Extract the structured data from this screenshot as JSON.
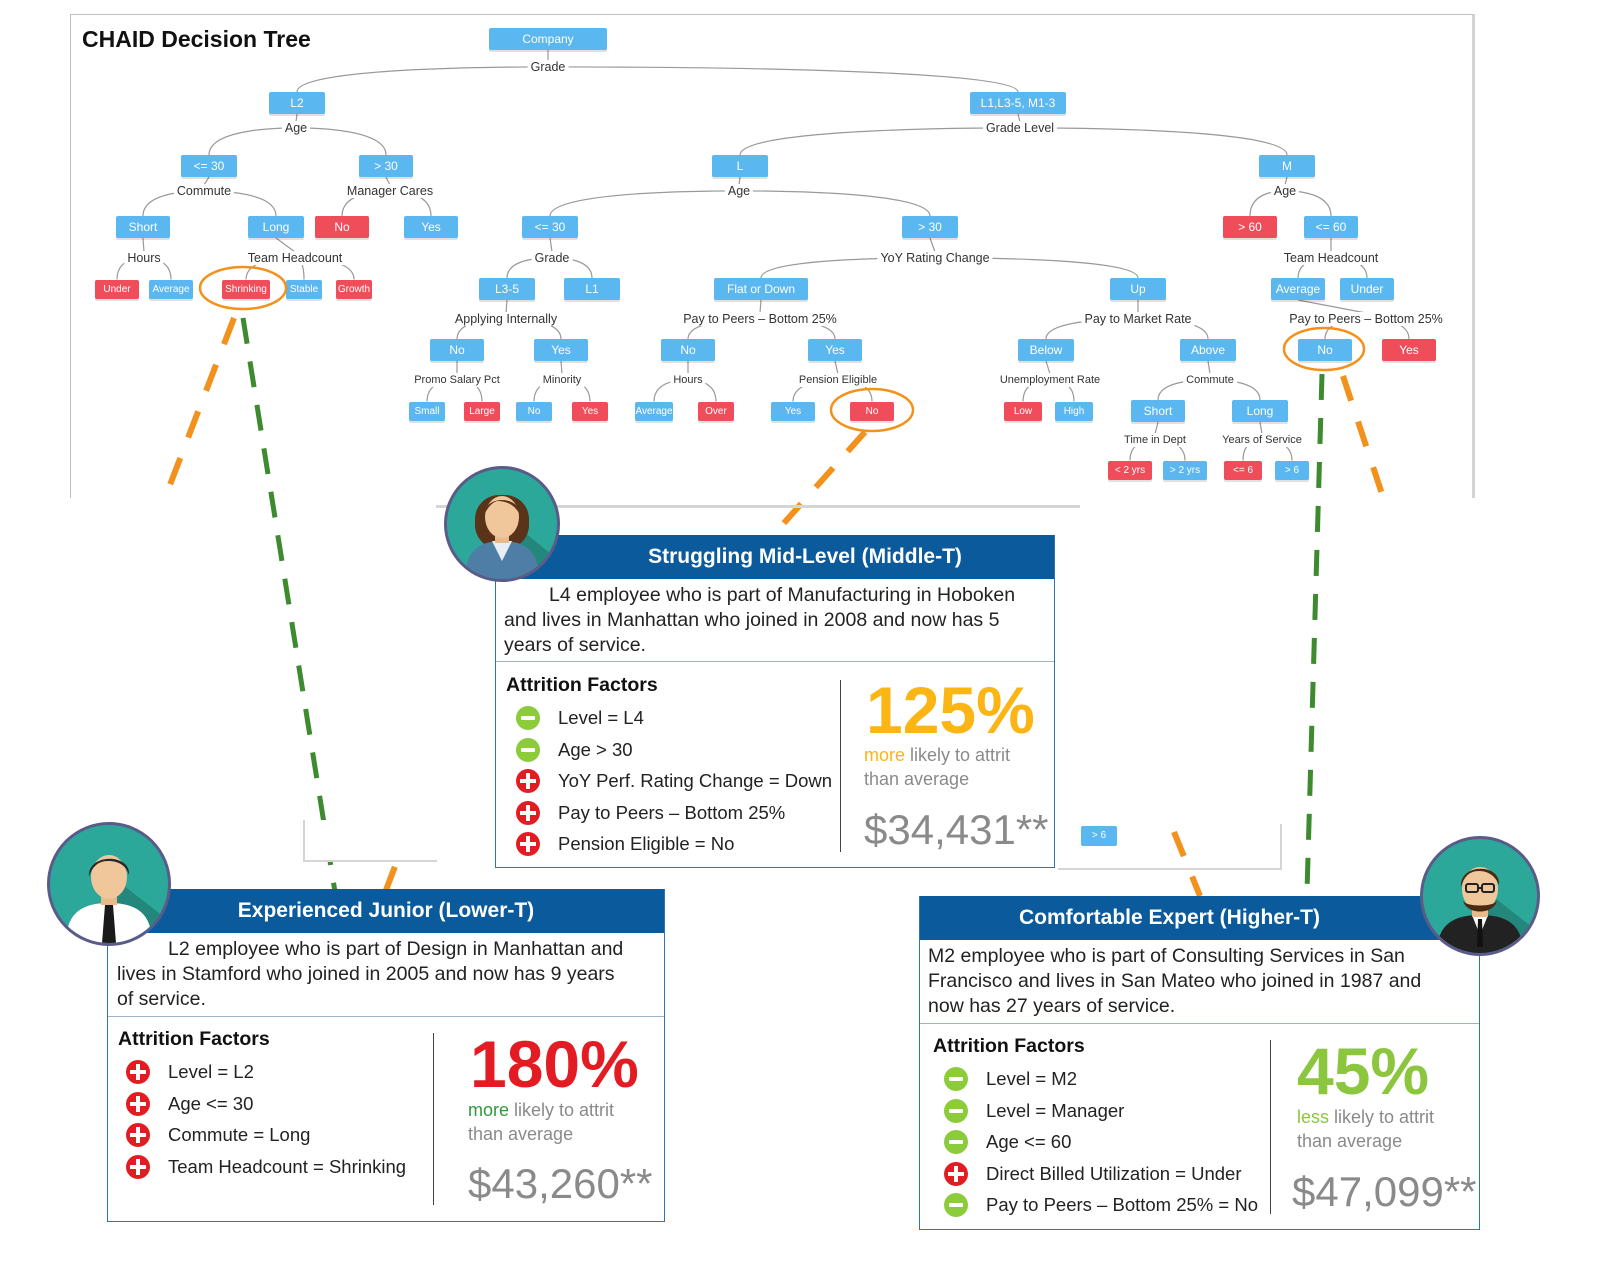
{
  "title": "CHAID Decision Tree",
  "colors": {
    "node_blue": "#5bb7ef",
    "node_red": "#ef4d5a",
    "header_blue": "#0a5a9c",
    "orange": "#f2911b",
    "green_dash": "#3d8a2f"
  },
  "tree": {
    "nodes": [
      {
        "id": "company",
        "label": "Company",
        "color": "blue"
      },
      {
        "id": "l2",
        "label": "L2",
        "color": "blue"
      },
      {
        "id": "l1l3",
        "label": "L1,L3-5, M1-3",
        "color": "blue"
      },
      {
        "id": "le30a",
        "label": "<= 30",
        "color": "blue"
      },
      {
        "id": "gt30a",
        "label": "> 30",
        "color": "blue"
      },
      {
        "id": "short1",
        "label": "Short",
        "color": "blue"
      },
      {
        "id": "long1",
        "label": "Long",
        "color": "blue"
      },
      {
        "id": "no_mc",
        "label": "No",
        "color": "red"
      },
      {
        "id": "yes_mc",
        "label": "Yes",
        "color": "blue"
      },
      {
        "id": "under1",
        "label": "Under",
        "color": "red"
      },
      {
        "id": "avg1",
        "label": "Average",
        "color": "blue"
      },
      {
        "id": "shrink",
        "label": "Shrinking",
        "color": "red"
      },
      {
        "id": "stable",
        "label": "Stable",
        "color": "blue"
      },
      {
        "id": "growth",
        "label": "Growth",
        "color": "red"
      },
      {
        "id": "L",
        "label": "L",
        "color": "blue"
      },
      {
        "id": "M",
        "label": "M",
        "color": "blue"
      },
      {
        "id": "le30b",
        "label": "<= 30",
        "color": "blue"
      },
      {
        "id": "gt30b",
        "label": "> 30",
        "color": "blue"
      },
      {
        "id": "gt60",
        "label": "> 60",
        "color": "red"
      },
      {
        "id": "le60",
        "label": "<= 60",
        "color": "blue"
      },
      {
        "id": "l35",
        "label": "L3-5",
        "color": "blue"
      },
      {
        "id": "l1",
        "label": "L1",
        "color": "blue"
      },
      {
        "id": "flat",
        "label": "Flat or Down",
        "color": "blue"
      },
      {
        "id": "up",
        "label": "Up",
        "color": "blue"
      },
      {
        "id": "avg2",
        "label": "Average",
        "color": "blue"
      },
      {
        "id": "under2",
        "label": "Under",
        "color": "blue"
      },
      {
        "id": "no_ai",
        "label": "No",
        "color": "blue"
      },
      {
        "id": "yes_ai",
        "label": "Yes",
        "color": "blue"
      },
      {
        "id": "no_pp",
        "label": "No",
        "color": "blue"
      },
      {
        "id": "yes_pp",
        "label": "Yes",
        "color": "blue"
      },
      {
        "id": "below",
        "label": "Below",
        "color": "blue"
      },
      {
        "id": "above",
        "label": "Above",
        "color": "blue"
      },
      {
        "id": "no_pp2",
        "label": "No",
        "color": "blue"
      },
      {
        "id": "yes_pp2",
        "label": "Yes",
        "color": "red"
      },
      {
        "id": "small",
        "label": "Small",
        "color": "blue"
      },
      {
        "id": "large",
        "label": "Large",
        "color": "red"
      },
      {
        "id": "no_min",
        "label": "No",
        "color": "blue"
      },
      {
        "id": "yes_min",
        "label": "Yes",
        "color": "red"
      },
      {
        "id": "average3",
        "label": "Average",
        "color": "blue"
      },
      {
        "id": "over",
        "label": "Over",
        "color": "red"
      },
      {
        "id": "yes_pe",
        "label": "Yes",
        "color": "blue"
      },
      {
        "id": "no_pe",
        "label": "No",
        "color": "red"
      },
      {
        "id": "low",
        "label": "Low",
        "color": "red"
      },
      {
        "id": "high",
        "label": "High",
        "color": "blue"
      },
      {
        "id": "short2",
        "label": "Short",
        "color": "blue"
      },
      {
        "id": "long2",
        "label": "Long",
        "color": "blue"
      },
      {
        "id": "lt2",
        "label": "< 2 yrs",
        "color": "red"
      },
      {
        "id": "gt2",
        "label": "> 2 yrs",
        "color": "blue"
      },
      {
        "id": "le6",
        "label": "<= 6",
        "color": "red"
      },
      {
        "id": "gt6",
        "label": "> 6",
        "color": "blue"
      }
    ],
    "splits": [
      {
        "id": "s_grade",
        "label": "Grade"
      },
      {
        "id": "s_age1",
        "label": "Age"
      },
      {
        "id": "s_gradelevel",
        "label": "Grade Level"
      },
      {
        "id": "s_commute1",
        "label": "Commute"
      },
      {
        "id": "s_mgr",
        "label": "Manager Cares"
      },
      {
        "id": "s_hours1",
        "label": "Hours"
      },
      {
        "id": "s_teamhc1",
        "label": "Team Headcount"
      },
      {
        "id": "s_age2",
        "label": "Age"
      },
      {
        "id": "s_age3",
        "label": "Age"
      },
      {
        "id": "s_grade2",
        "label": "Grade"
      },
      {
        "id": "s_yoy",
        "label": "YoY Rating Change"
      },
      {
        "id": "s_teamhc2",
        "label": "Team Headcount"
      },
      {
        "id": "s_applying",
        "label": "Applying Internally"
      },
      {
        "id": "s_ptp",
        "label": "Pay to Peers – Bottom 25%"
      },
      {
        "id": "s_ptm",
        "label": "Pay to Market Rate"
      },
      {
        "id": "s_ptp2",
        "label": "Pay to Peers – Bottom 25%"
      },
      {
        "id": "s_promo",
        "label": "Promo Salary Pct"
      },
      {
        "id": "s_minority",
        "label": "Minority"
      },
      {
        "id": "s_hours2",
        "label": "Hours"
      },
      {
        "id": "s_pension",
        "label": "Pension Eligible"
      },
      {
        "id": "s_unemp",
        "label": "Unemployment Rate"
      },
      {
        "id": "s_commute2",
        "label": "Commute"
      },
      {
        "id": "s_timedept",
        "label": "Time in Dept"
      },
      {
        "id": "s_yos",
        "label": "Years of Service"
      }
    ]
  },
  "mini_node": "> 6",
  "cards": [
    {
      "id": "middle",
      "title": "Struggling Mid-Level (Middle-T)",
      "description": [
        "L4 employee who is part of Manufacturing in Hoboken",
        "and lives in Manhattan who joined in 2008 and now has 5",
        "years of service."
      ],
      "factors_title": "Attrition Factors",
      "factors": [
        {
          "icon": "minus-circle-icon",
          "type": "minus",
          "text": "Level = L4"
        },
        {
          "icon": "minus-circle-icon",
          "type": "minus",
          "text": "Age > 30"
        },
        {
          "icon": "plus-circle-icon",
          "type": "plus",
          "text": "YoY Perf. Rating Change  =  Down"
        },
        {
          "icon": "plus-circle-icon",
          "type": "plus",
          "text": "Pay to Peers – Bottom 25%"
        },
        {
          "icon": "plus-circle-icon",
          "type": "plus",
          "text": "Pension Eligible = No"
        }
      ],
      "percent": "125%",
      "percent_color": "#fbb515",
      "direction": "more",
      "direction_color": "#fbb515",
      "likely_line1_rest": " likely to attrit",
      "likely_line2": "than average",
      "amount": "$34,431**"
    },
    {
      "id": "lower",
      "title": "Experienced Junior (Lower-T)",
      "description": [
        "L2 employee who is part of Design in Manhattan and",
        "lives in Stamford who joined in 2005 and now has 9 years",
        "of service."
      ],
      "factors_title": "Attrition Factors",
      "factors": [
        {
          "icon": "plus-circle-icon",
          "type": "plus",
          "text": "Level = L2"
        },
        {
          "icon": "plus-circle-icon",
          "type": "plus",
          "text": "Age <= 30"
        },
        {
          "icon": "plus-circle-icon",
          "type": "plus",
          "text": "Commute = Long"
        },
        {
          "icon": "plus-circle-icon",
          "type": "plus",
          "text": "Team Headcount = Shrinking"
        }
      ],
      "percent": "180%",
      "percent_color": "#e31c23",
      "direction": "more",
      "direction_color": "#2f9a3b",
      "likely_line1_rest": " likely to attrit",
      "likely_line2": "than average",
      "amount": "$43,260**"
    },
    {
      "id": "higher",
      "title": "Comfortable Expert (Higher-T)",
      "description": [
        "M2 employee who is part of Consulting Services in San",
        "Francisco and lives in San Mateo who joined in 1987 and",
        "now has 27 years of service."
      ],
      "factors_title": "Attrition Factors",
      "factors": [
        {
          "icon": "minus-circle-icon",
          "type": "minus",
          "text": "Level = M2"
        },
        {
          "icon": "minus-circle-icon",
          "type": "minus",
          "text": "Level = Manager"
        },
        {
          "icon": "minus-circle-icon",
          "type": "minus",
          "text": "Age <= 60"
        },
        {
          "icon": "plus-circle-icon",
          "type": "plus",
          "text": "Direct Billed Utilization = Under"
        },
        {
          "icon": "minus-circle-icon",
          "type": "minus",
          "text": "Pay to Peers – Bottom 25% = No"
        }
      ],
      "percent": "45%",
      "percent_color": "#8cc63f",
      "direction": "less",
      "direction_color": "#8cc63f",
      "likely_line1_rest": " likely to attrit",
      "likely_line2": "than average",
      "amount": "$47,099**"
    }
  ]
}
